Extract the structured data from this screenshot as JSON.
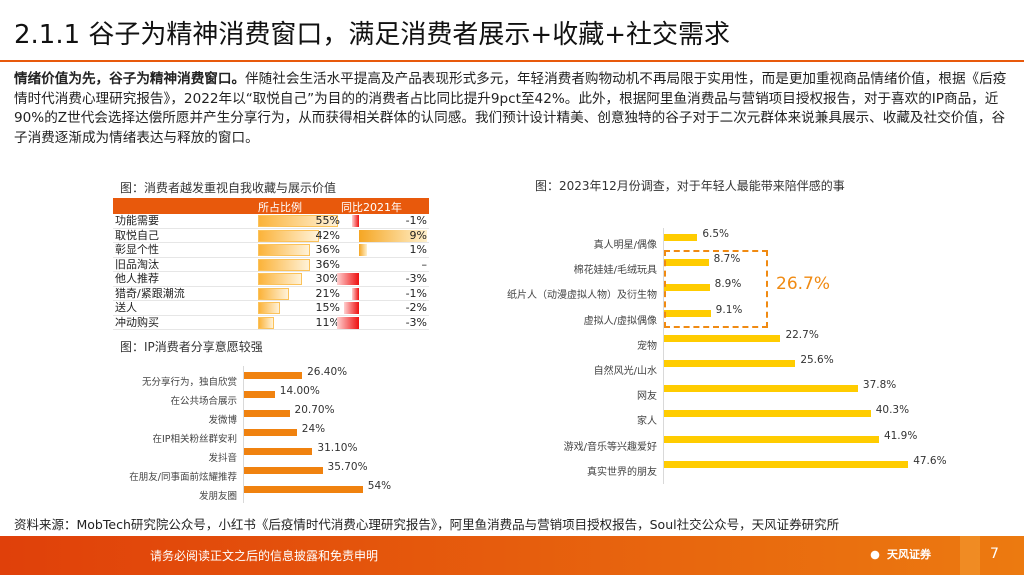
{
  "title": "2.1.1 谷子为精神消费窗口，满足消费者展示+收藏+社交需求",
  "paragraph": {
    "lead": "情绪价值为先，谷子为精神消费窗口。",
    "body": "伴随社会生活水平提高及产品表现形式多元，年轻消费者购物动机不再局限于实用性，而是更加重视商品情绪价值，根据《后疫情时代消费心理研究报告》，2022年以“取悦自己”为目的的消费者占比同比提升9pct至42%。此外，根据阿里鱼消费品与营销项目授权报告，对于喜欢的IP商品，近90%的Z世代会选择达偿所愿并产生分享行为，从而获得相关群体的认同感。我们预计设计精美、创意独特的谷子对于二次元群体来说兼具展示、收藏及社交价值，谷子消费逐渐成为情绪表达与释放的窗口。"
  },
  "chart_data": [
    {
      "type": "table",
      "title": "图：消费者越发重视自我收藏与展示价值",
      "columns": [
        "",
        "所占比例",
        "同比2021年"
      ],
      "rows": [
        [
          "功能需要",
          "55%",
          "-1%"
        ],
        [
          "取悦自己",
          "42%",
          "9%"
        ],
        [
          "彰显个性",
          "36%",
          "1%"
        ],
        [
          "旧品淘汰",
          "36%",
          "–"
        ],
        [
          "他人推荐",
          "30%",
          "-3%"
        ],
        [
          "猎奇/紧跟潮流",
          "21%",
          "-1%"
        ],
        [
          "送人",
          "15%",
          "-2%"
        ],
        [
          "冲动购买",
          "11%",
          "-3%"
        ]
      ],
      "share": [
        55,
        42,
        36,
        36,
        30,
        21,
        15,
        11
      ],
      "yoy": [
        -1,
        9,
        1,
        null,
        -3,
        -1,
        -2,
        -3
      ]
    },
    {
      "type": "bar",
      "orientation": "horizontal",
      "title": "图：IP消费者分享意愿较强",
      "categories": [
        "无分享行为，独自欣赏",
        "在公共场合展示",
        "发微博",
        "在IP相关粉丝群安利",
        "发抖音",
        "在朋友/同事面前炫耀推荐",
        "发朋友圈"
      ],
      "values": [
        26.4,
        14.0,
        20.7,
        24,
        31.1,
        35.7,
        54
      ],
      "labels": [
        "26.40%",
        "14.00%",
        "20.70%",
        "24%",
        "31.10%",
        "35.70%",
        "54%"
      ],
      "color": "#f0820f"
    },
    {
      "type": "bar",
      "orientation": "horizontal",
      "title": "图：2023年12月份调查，对于年轻人最能带来陪伴感的事",
      "categories": [
        "真人明星/偶像",
        "棉花娃娃/毛绒玩具",
        "纸片人（动漫虚拟人物）及衍生物",
        "虚拟人/虚拟偶像",
        "宠物",
        "自然风光/山水",
        "网友",
        "家人",
        "游戏/音乐等兴趣爱好",
        "真实世界的朋友"
      ],
      "values": [
        6.5,
        8.7,
        8.9,
        9.1,
        22.7,
        25.6,
        37.8,
        40.3,
        41.9,
        47.6
      ],
      "labels": [
        "6.5%",
        "8.7%",
        "8.9%",
        "9.1%",
        "22.7%",
        "25.6%",
        "37.8%",
        "40.3%",
        "41.9%",
        "47.6%"
      ],
      "color": "#ffcc00",
      "annotation": "26.7%",
      "annotation_color": "#f08a12"
    }
  ],
  "source": "资料来源：MobTech研究院公众号，小红书《后疫情时代消费心理研究报告》，阿里鱼消费品与营销项目授权报告，Soul社交公众号，天风证券研究所",
  "footer": {
    "disclaimer": "请务必阅读正文之后的信息披露和免责申明",
    "logo": "天风证券",
    "page": "7"
  }
}
